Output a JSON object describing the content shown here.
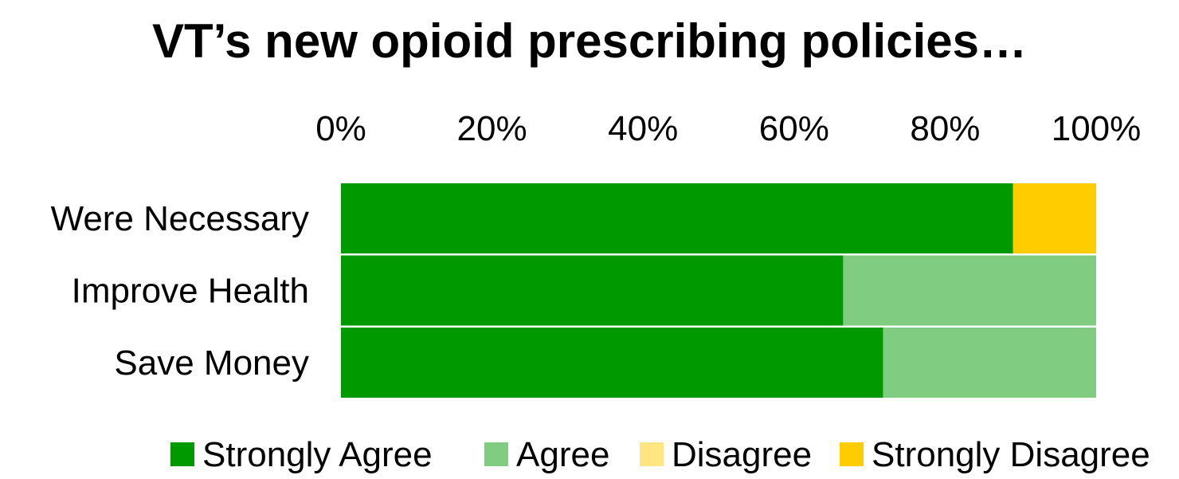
{
  "chart_data": {
    "type": "bar",
    "orientation": "horizontal",
    "stacked": true,
    "title": "VT’s new opioid prescribing policies…",
    "xlabel": "",
    "ylabel": "",
    "x_axis_position": "top",
    "xlim": [
      0,
      100
    ],
    "x_ticks": [
      0,
      20,
      40,
      60,
      80,
      100
    ],
    "x_tick_labels": [
      "0%",
      "20%",
      "40%",
      "60%",
      "80%",
      "100%"
    ],
    "categories": [
      "Were Necessary",
      "Improve Health",
      "Save Money"
    ],
    "series": [
      {
        "name": "Strongly Agree",
        "color": "#009900",
        "values": [
          89,
          66.5,
          71.8
        ]
      },
      {
        "name": "Agree",
        "color": "#80CC80",
        "values": [
          0,
          33.5,
          28.2
        ]
      },
      {
        "name": "Disagree",
        "color": "#FFE680",
        "values": [
          0,
          0,
          0
        ]
      },
      {
        "name": "Strongly Disagree",
        "color": "#FFCC00",
        "values": [
          11,
          0,
          0
        ]
      }
    ],
    "grid": false,
    "legend_position": "bottom"
  }
}
